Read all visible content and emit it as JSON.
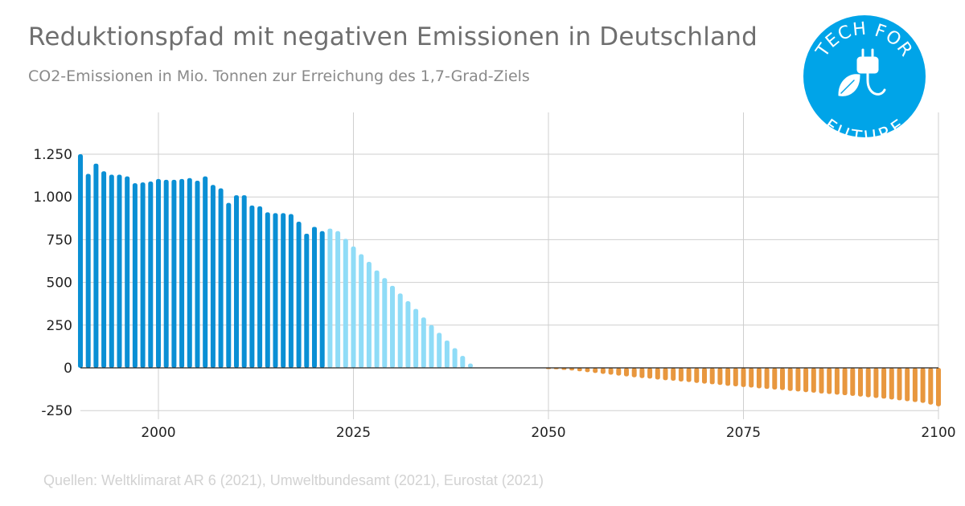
{
  "title": "Reduktionspfad mit negativen Emissionen in Deutschland",
  "subtitle": "CO2-Emissionen in Mio. Tonnen zur Erreichung des 1,7-Grad-Ziels",
  "source": "Quellen: Weltklimarat AR 6 (2021), Umweltbundesamt (2021), Eurostat (2021)",
  "logo": {
    "top_text": "TECH FOR",
    "bottom_text": "FUTURE",
    "icon": "plug-leaf-icon",
    "color": "#00a4e8"
  },
  "colors": {
    "historical": "#0a8fd4",
    "projected": "#8fdcf7",
    "negative": "#e8973e",
    "grid": "#cfcfcf",
    "zero_line": "#222222"
  },
  "chart_data": {
    "type": "bar",
    "title": "Reduktionspfad mit negativen Emissionen in Deutschland",
    "subtitle": "CO2-Emissionen in Mio. Tonnen zur Erreichung des 1,7-Grad-Ziels",
    "xlabel": "",
    "ylabel": "",
    "xlim": [
      1990,
      2100
    ],
    "ylim": [
      -250,
      1250
    ],
    "x_ticks": [
      2000,
      2025,
      2050,
      2075,
      2100
    ],
    "x_tick_labels": [
      "2000",
      "2025",
      "2050",
      "2075",
      "2100"
    ],
    "y_ticks": [
      -250,
      0,
      250,
      500,
      750,
      1000,
      1250
    ],
    "y_tick_labels": [
      "-250",
      "0",
      "250",
      "500",
      "750",
      "1.000",
      "1.250"
    ],
    "grid": true,
    "legend": "none",
    "series": [
      {
        "color": "#0a8fd4",
        "x": [
          1990,
          1991,
          1992,
          1993,
          1994,
          1995,
          1996,
          1997,
          1998,
          1999,
          2000,
          2001,
          2002,
          2003,
          2004,
          2005,
          2006,
          2007,
          2008,
          2009,
          2010,
          2011,
          2012,
          2013,
          2014,
          2015,
          2016,
          2017,
          2018,
          2019,
          2020,
          2021
        ],
        "values": [
          1250,
          1135,
          1195,
          1150,
          1130,
          1130,
          1120,
          1080,
          1085,
          1090,
          1105,
          1100,
          1100,
          1105,
          1110,
          1095,
          1120,
          1070,
          1050,
          965,
          1010,
          1010,
          950,
          945,
          910,
          905,
          905,
          900,
          855,
          785,
          825,
          800
        ]
      },
      {
        "color": "#8fdcf7",
        "x": [
          2022,
          2023,
          2024,
          2025,
          2026,
          2027,
          2028,
          2029,
          2030,
          2031,
          2032,
          2033,
          2034,
          2035,
          2036,
          2037,
          2038,
          2039,
          2040
        ],
        "values": [
          815,
          800,
          755,
          710,
          665,
          620,
          570,
          525,
          480,
          435,
          390,
          345,
          295,
          250,
          205,
          160,
          115,
          70,
          25
        ]
      },
      {
        "color": "#e8973e",
        "x": [
          2050,
          2051,
          2052,
          2053,
          2054,
          2055,
          2056,
          2057,
          2058,
          2059,
          2060,
          2061,
          2062,
          2063,
          2064,
          2065,
          2066,
          2067,
          2068,
          2069,
          2070,
          2071,
          2072,
          2073,
          2074,
          2075,
          2076,
          2077,
          2078,
          2079,
          2080,
          2081,
          2082,
          2083,
          2084,
          2085,
          2086,
          2087,
          2088,
          2089,
          2090,
          2091,
          2092,
          2093,
          2094,
          2095,
          2096,
          2097,
          2098,
          2099,
          2100
        ],
        "values": [
          -5,
          -8,
          -12,
          -15,
          -20,
          -25,
          -30,
          -35,
          -40,
          -45,
          -50,
          -55,
          -60,
          -63,
          -68,
          -72,
          -75,
          -80,
          -83,
          -88,
          -92,
          -96,
          -100,
          -105,
          -108,
          -112,
          -115,
          -120,
          -123,
          -127,
          -130,
          -135,
          -138,
          -142,
          -145,
          -150,
          -153,
          -157,
          -160,
          -164,
          -168,
          -172,
          -176,
          -180,
          -185,
          -190,
          -195,
          -200,
          -205,
          -215,
          -225
        ]
      }
    ]
  }
}
